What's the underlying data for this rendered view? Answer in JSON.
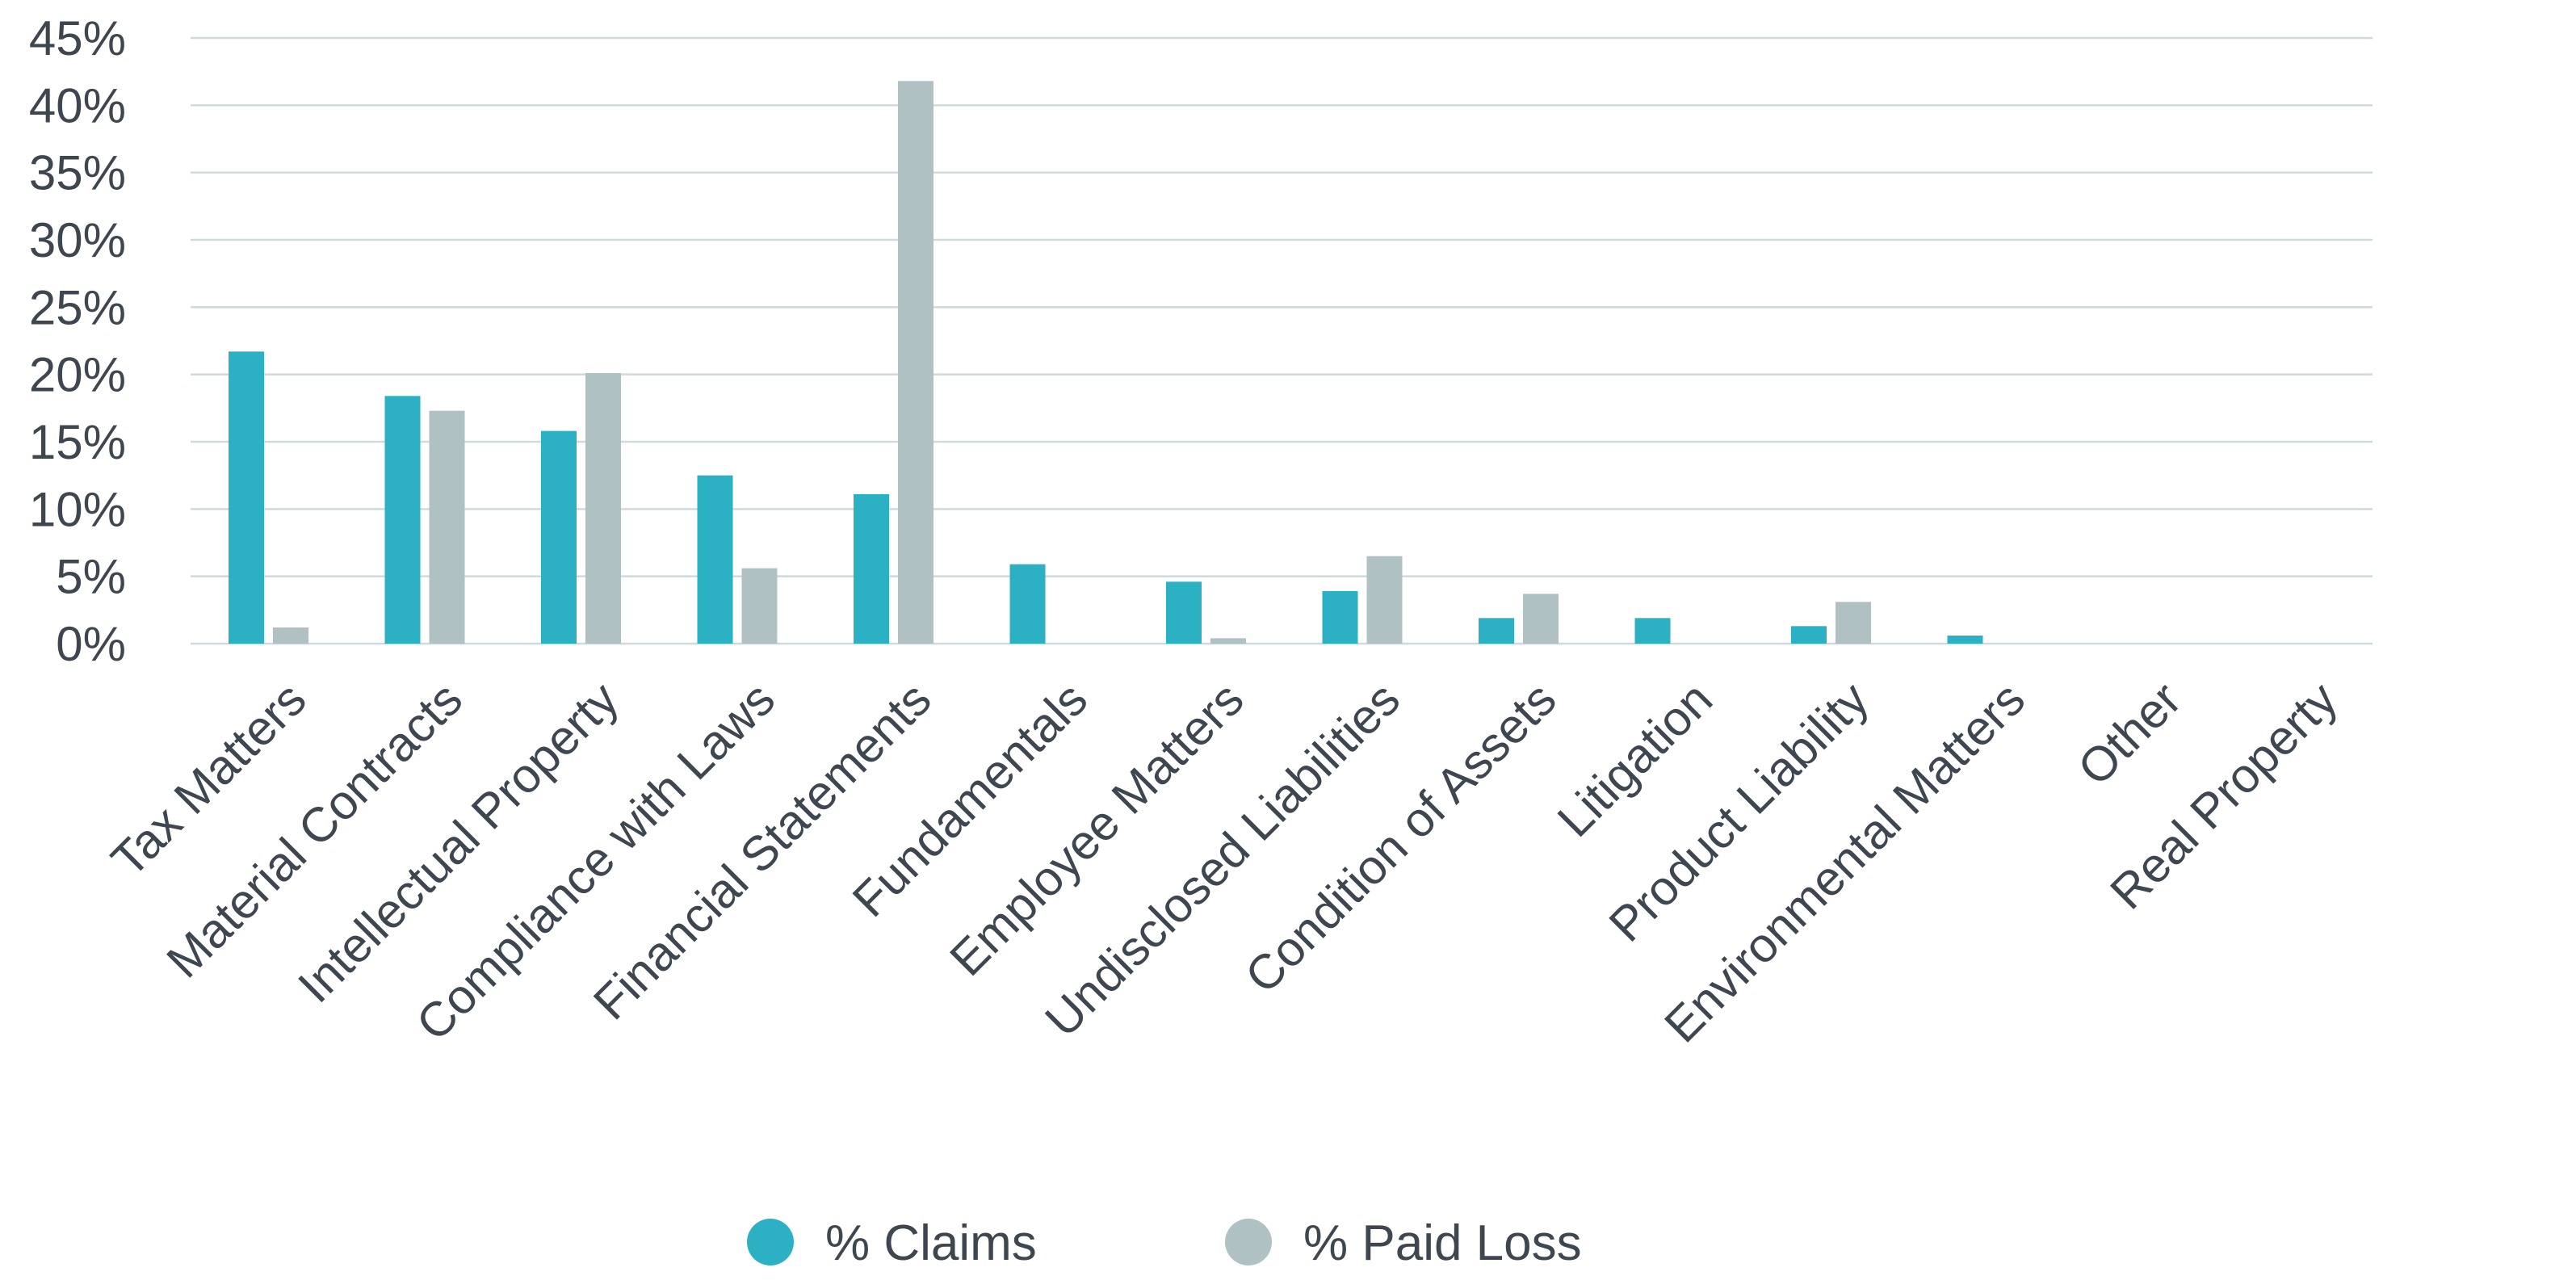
{
  "chart_data": {
    "type": "bar",
    "categories": [
      "Tax Matters",
      "Material Contracts",
      "Intellectual Property",
      "Compliance with Laws",
      "Financial Statements",
      "Fundamentals",
      "Employee Matters",
      "Undisclosed Liabilities",
      "Condition of Assets",
      "Litigation",
      "Product Liability",
      "Environmental Matters",
      "Other",
      "Real Property"
    ],
    "series": [
      {
        "name": "% Claims",
        "color": "#2bb0c4",
        "values": [
          21.7,
          18.4,
          15.8,
          12.5,
          11.1,
          5.9,
          4.6,
          3.9,
          1.9,
          1.9,
          1.3,
          0.6,
          0,
          0
        ]
      },
      {
        "name": "% Paid Loss",
        "color": "#b0c1c4",
        "values": [
          1.2,
          17.3,
          20.1,
          5.6,
          41.8,
          0,
          0.4,
          6.5,
          3.7,
          0,
          3.1,
          0,
          0,
          0
        ]
      }
    ],
    "yticks": [
      "0%",
      "5%",
      "10%",
      "15%",
      "20%",
      "25%",
      "30%",
      "35%",
      "40%",
      "45%"
    ],
    "ylim": [
      0,
      45
    ],
    "grid": true,
    "legend": "bottom-center",
    "title": "",
    "xlabel": "",
    "ylabel": ""
  }
}
